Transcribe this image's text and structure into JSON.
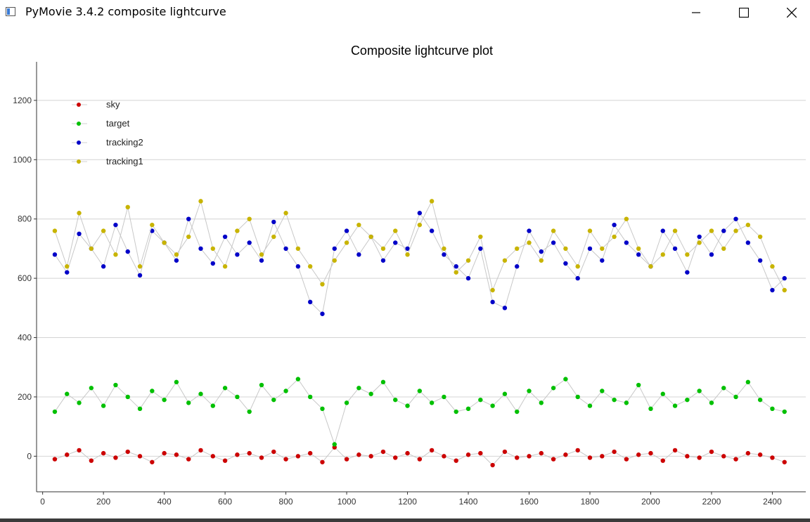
{
  "window": {
    "title": "PyMovie 3.4.2 composite lightcurve",
    "icon": "app-window-icon",
    "controls": [
      "minimize-icon",
      "maximize-icon",
      "close-icon"
    ]
  },
  "chart_data": {
    "type": "scatter",
    "title": "Composite lightcurve plot",
    "xlabel": "",
    "ylabel": "",
    "xlim": [
      -20,
      2510
    ],
    "ylim": [
      -120,
      1330
    ],
    "x_ticks": [
      0,
      200,
      400,
      600,
      800,
      1000,
      1200,
      1400,
      1600,
      1800,
      2000,
      2200,
      2400
    ],
    "y_ticks": [
      0,
      200,
      400,
      600,
      800,
      1000,
      1200
    ],
    "grid": "horizontal",
    "legend_position": "top-left",
    "connector_color": "#c8c8c8",
    "x": [
      40,
      80,
      120,
      160,
      200,
      240,
      280,
      320,
      360,
      400,
      440,
      480,
      520,
      560,
      600,
      640,
      680,
      720,
      760,
      800,
      840,
      880,
      920,
      960,
      1000,
      1040,
      1080,
      1120,
      1160,
      1200,
      1240,
      1280,
      1320,
      1360,
      1400,
      1440,
      1480,
      1520,
      1560,
      1600,
      1640,
      1680,
      1720,
      1760,
      1800,
      1840,
      1880,
      1920,
      1960,
      2000,
      2040,
      2080,
      2120,
      2160,
      2200,
      2240,
      2280,
      2320,
      2360,
      2400,
      2440
    ],
    "series": [
      {
        "name": "sky",
        "color": "#cc0000",
        "values": [
          -10,
          5,
          20,
          -15,
          10,
          -5,
          15,
          0,
          -20,
          10,
          5,
          -10,
          20,
          0,
          -15,
          5,
          10,
          -5,
          15,
          -10,
          0,
          10,
          -20,
          30,
          -10,
          5,
          0,
          15,
          -5,
          10,
          -10,
          20,
          0,
          -15,
          5,
          10,
          -30,
          15,
          -5,
          0,
          10,
          -10,
          5,
          20,
          -5,
          0,
          15,
          -10,
          5,
          10,
          -15,
          20,
          0,
          -5,
          15,
          0,
          -10,
          10,
          5,
          -5,
          -20
        ]
      },
      {
        "name": "target",
        "color": "#00c000",
        "values": [
          150,
          210,
          180,
          230,
          170,
          240,
          200,
          160,
          220,
          190,
          250,
          180,
          210,
          170,
          230,
          200,
          150,
          240,
          190,
          220,
          260,
          200,
          160,
          40,
          180,
          230,
          210,
          250,
          190,
          170,
          220,
          180,
          200,
          150,
          160,
          190,
          170,
          210,
          150,
          220,
          180,
          230,
          260,
          200,
          170,
          220,
          190,
          180,
          240,
          160,
          210,
          170,
          190,
          220,
          180,
          230,
          200,
          250,
          190,
          160,
          150
        ]
      },
      {
        "name": "tracking2",
        "color": "#0000c8",
        "values": [
          680,
          620,
          750,
          700,
          640,
          780,
          690,
          610,
          760,
          720,
          660,
          800,
          700,
          650,
          740,
          680,
          720,
          660,
          790,
          700,
          640,
          520,
          480,
          700,
          760,
          680,
          740,
          660,
          720,
          700,
          820,
          760,
          680,
          640,
          600,
          700,
          520,
          500,
          640,
          760,
          690,
          720,
          650,
          600,
          700,
          660,
          780,
          720,
          680,
          640,
          760,
          700,
          620,
          740,
          680,
          760,
          800,
          720,
          660,
          560,
          600
        ]
      },
      {
        "name": "tracking1",
        "color": "#c8b400",
        "values": [
          760,
          640,
          820,
          700,
          760,
          680,
          840,
          640,
          780,
          720,
          680,
          740,
          860,
          700,
          640,
          760,
          800,
          680,
          740,
          820,
          700,
          640,
          580,
          660,
          720,
          780,
          740,
          700,
          760,
          680,
          780,
          860,
          700,
          620,
          660,
          740,
          560,
          660,
          700,
          720,
          660,
          760,
          700,
          640,
          760,
          700,
          740,
          800,
          700,
          640,
          680,
          760,
          680,
          720,
          760,
          700,
          760,
          780,
          740,
          640,
          560
        ]
      }
    ]
  }
}
